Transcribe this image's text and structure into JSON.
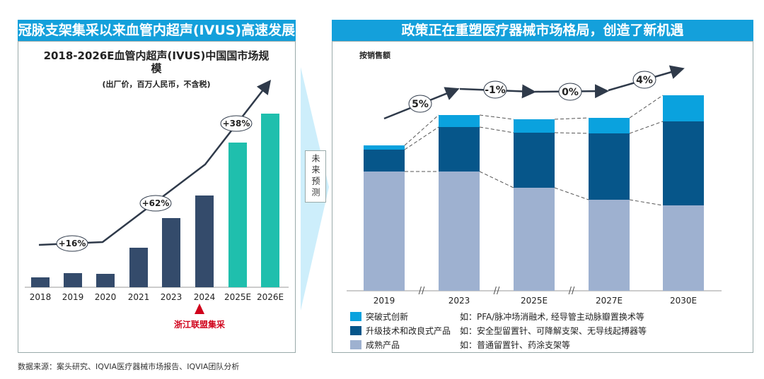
{
  "left": {
    "header": "冠脉支架集采以来血管内超声(IVUS)高速发展",
    "chart_data": {
      "type": "bar",
      "title": "2018-2026E血管内超声(IVUS)中国国市场规模",
      "subtitle": "(出厂价，百万人民币，不含税)",
      "categories": [
        "2018",
        "2019",
        "2020",
        "2021",
        "2023",
        "2024",
        "2025E",
        "2026E"
      ],
      "values": [
        14,
        20,
        19,
        56,
        98,
        130,
        205,
        246
      ],
      "bar_colors": [
        "#344b6b",
        "#344b6b",
        "#344b6b",
        "#344b6b",
        "#344b6b",
        "#344b6b",
        "#1fbfad",
        "#1fbfad"
      ],
      "growth_labels": [
        "+16%",
        "+62%",
        "+38%"
      ],
      "annotation": "浙江联盟集采",
      "annotation_color": "#d0021b"
    }
  },
  "divider_label": "未来预测",
  "right": {
    "header": "政策正在重塑医疗器械市场格局，创造了新机遇",
    "chart_data": {
      "type": "bar",
      "stacked": true,
      "title": "按销售额",
      "categories": [
        "2019",
        "2023",
        "2025E",
        "2027E",
        "2030E"
      ],
      "series": [
        {
          "name": "成熟产品",
          "color": "#9eb1d0",
          "values": [
            169,
            169,
            146,
            129,
            121
          ]
        },
        {
          "name": "升级技术和改良式产品",
          "color": "#06568a",
          "values": [
            31,
            63,
            78,
            94,
            119
          ]
        },
        {
          "name": "突破式创新",
          "color": "#0aa2de",
          "values": [
            6,
            17,
            19,
            22,
            37
          ]
        }
      ],
      "growth_labels": [
        "5%",
        "-1%",
        "0%",
        "4%"
      ]
    },
    "legend_notes": [
      "如：PFA/脉冲场消融术, 经导管主动脉瓣置换术等",
      "如：安全型留置针、可降解支架、无导线起搏器等",
      "如：普通留置针、药涂支架等"
    ]
  },
  "source": "数据来源：案头研究、IQVIA医疗器械市场报告、IQVIA团队分析"
}
